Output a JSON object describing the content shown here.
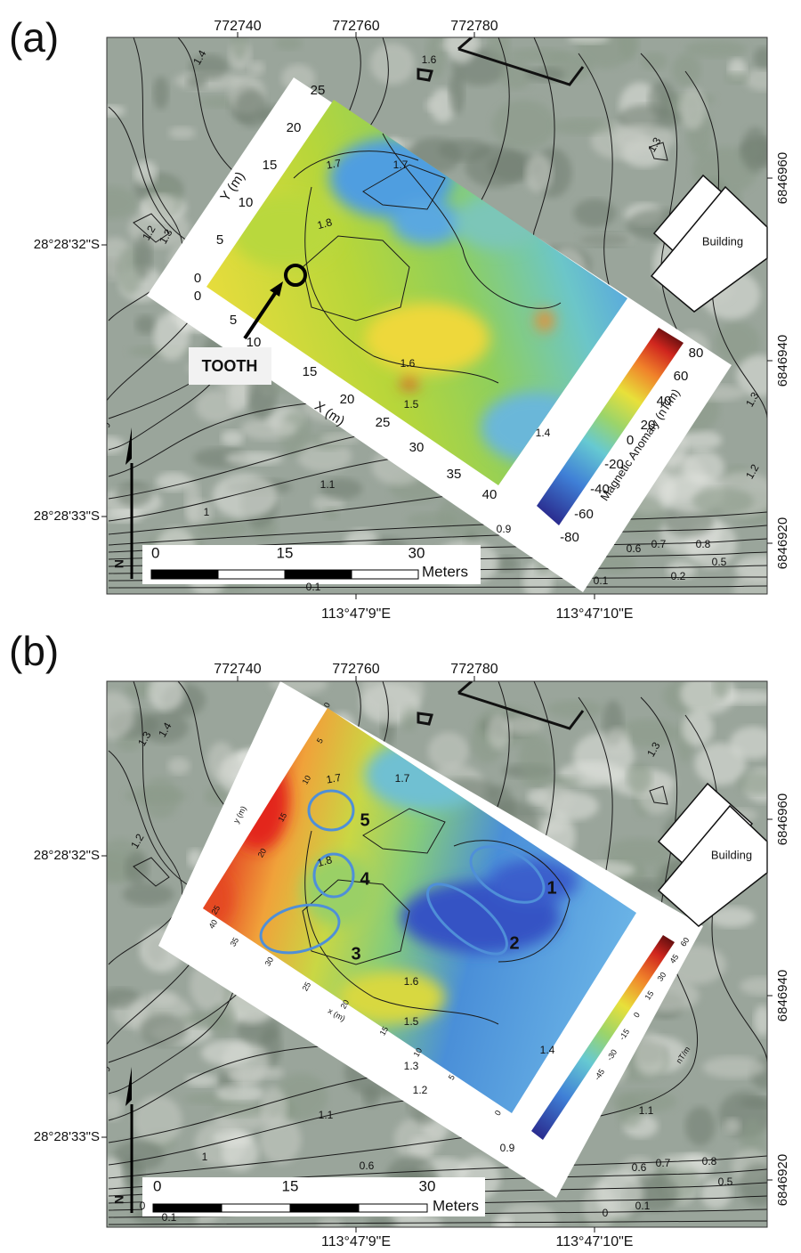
{
  "panels": [
    {
      "label": "(a)",
      "top_ticks": [
        "772740",
        "772760",
        "772780"
      ],
      "left_ticks": [
        "28°28'32\"S",
        "28°28'33\"S"
      ],
      "right_ticks": [
        "6846960",
        "6846940",
        "6846920"
      ],
      "bottom_ticks": [
        "113°47'9\"E",
        "113°47'10\"E"
      ],
      "contour_labels": [
        "1.4",
        "1.6",
        "1.3",
        "1.2",
        "1.3",
        "1.7",
        "1.7",
        "1.8",
        "1.6",
        "1.5",
        "1.4",
        "1.3",
        "1.2",
        "1.1",
        "1",
        "0.9",
        "0.6",
        "0.7",
        "0.8",
        "0.5",
        "0.2",
        "0.1",
        "0.1"
      ],
      "survey_axes": {
        "y_title": "Y (m)",
        "y_ticks": [
          "25",
          "20",
          "15",
          "10",
          "5",
          "0"
        ],
        "x_title": "X (m)",
        "x_ticks": [
          "0",
          "5",
          "10",
          "15",
          "20",
          "25",
          "30",
          "35",
          "40"
        ]
      },
      "annotation": "TOOTH",
      "colorbar": {
        "title": "Magnetic Anomaly (nT/m)",
        "ticks": [
          "80",
          "60",
          "40",
          "20",
          "0",
          "-20",
          "-40",
          "-60",
          "-80"
        ]
      },
      "scale_bar": {
        "ticks": [
          "0",
          "15",
          "30"
        ],
        "unit": "Meters"
      },
      "north": "N",
      "building": "Building"
    },
    {
      "label": "(b)",
      "top_ticks": [
        "772740",
        "772760",
        "772780"
      ],
      "left_ticks": [
        "28°28'32\"S",
        "28°28'33\"S"
      ],
      "right_ticks": [
        "6846960",
        "6846940",
        "6846920"
      ],
      "bottom_ticks": [
        "113°47'9\"E",
        "113°47'10\"E"
      ],
      "contour_labels": [
        "1.4",
        "1.3",
        "1.2",
        "1.7",
        "1.7",
        "1.8",
        "1.6",
        "1.5",
        "1.4",
        "1.3",
        "1.2",
        "1.1",
        "1",
        "0.9",
        "0.6",
        "1.1",
        "1.3",
        "0.6",
        "0.7",
        "0.8",
        "0.5",
        "0.1",
        "0",
        "0.1",
        "0"
      ],
      "survey_axes": {
        "y_title": "y (m)",
        "y_ticks": [
          "0",
          "5",
          "10",
          "15",
          "20",
          "25"
        ],
        "x_title": "x (m)",
        "x_ticks": [
          "40",
          "35",
          "30",
          "25",
          "20",
          "15",
          "10",
          "5",
          "0"
        ]
      },
      "anomaly_labels": [
        "1",
        "2",
        "3",
        "4",
        "5"
      ],
      "colorbar": {
        "title": "nT/m",
        "ticks": [
          "60",
          "45",
          "30",
          "15",
          "0",
          "-15",
          "-30",
          "-45"
        ]
      },
      "scale_bar": {
        "ticks": [
          "0",
          "15",
          "30"
        ],
        "unit": "Meters"
      },
      "north": "N",
      "building": "Building"
    }
  ]
}
